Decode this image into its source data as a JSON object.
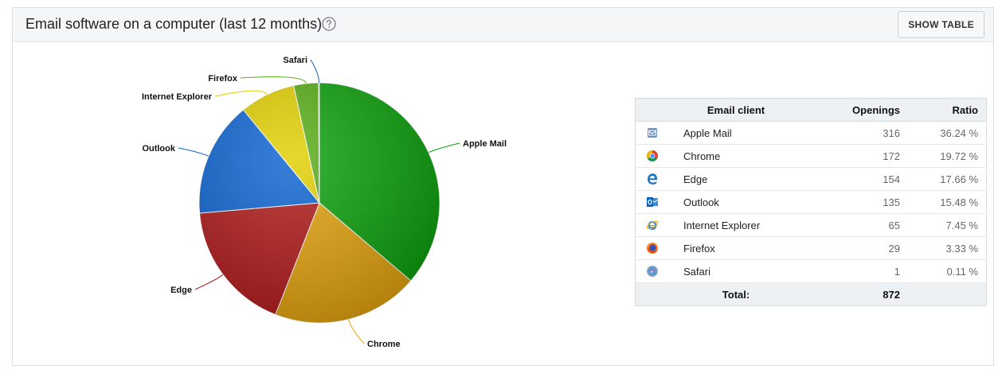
{
  "panel": {
    "title": "Email software on a computer (last 12 months)",
    "help_icon": "question-circle-icon",
    "show_table_label": "SHOW TABLE"
  },
  "table": {
    "headers": {
      "client": "Email client",
      "openings": "Openings",
      "ratio": "Ratio"
    },
    "rows": [
      {
        "client": "Apple Mail",
        "openings": "316",
        "ratio": "36.24 %",
        "icon": "apple-mail-icon"
      },
      {
        "client": "Chrome",
        "openings": "172",
        "ratio": "19.72 %",
        "icon": "chrome-icon"
      },
      {
        "client": "Edge",
        "openings": "154",
        "ratio": "17.66 %",
        "icon": "edge-icon"
      },
      {
        "client": "Outlook",
        "openings": "135",
        "ratio": "15.48 %",
        "icon": "outlook-icon"
      },
      {
        "client": "Internet Explorer",
        "openings": "65",
        "ratio": "7.45 %",
        "icon": "internet-explorer-icon"
      },
      {
        "client": "Firefox",
        "openings": "29",
        "ratio": "3.33 %",
        "icon": "firefox-icon"
      },
      {
        "client": "Safari",
        "openings": "1",
        "ratio": "0.11 %",
        "icon": "safari-icon"
      }
    ],
    "total_label": "Total:",
    "total_value": "872"
  },
  "chart_data": {
    "type": "pie",
    "title": "Email software on a computer (last 12 months)",
    "slices": [
      {
        "label": "Apple Mail",
        "value": 316,
        "color": "#0aa00a"
      },
      {
        "label": "Chrome",
        "value": 172,
        "color": "#e3a20c"
      },
      {
        "label": "Edge",
        "value": 154,
        "color": "#b01818"
      },
      {
        "label": "Outlook",
        "value": 135,
        "color": "#0b63d2"
      },
      {
        "label": "Internet Explorer",
        "value": 65,
        "color": "#e2d000"
      },
      {
        "label": "Firefox",
        "value": 29,
        "color": "#56ad14"
      },
      {
        "label": "Safari",
        "value": 1,
        "color": "#0f5fa8"
      }
    ],
    "start": "top",
    "direction": "clockwise"
  }
}
